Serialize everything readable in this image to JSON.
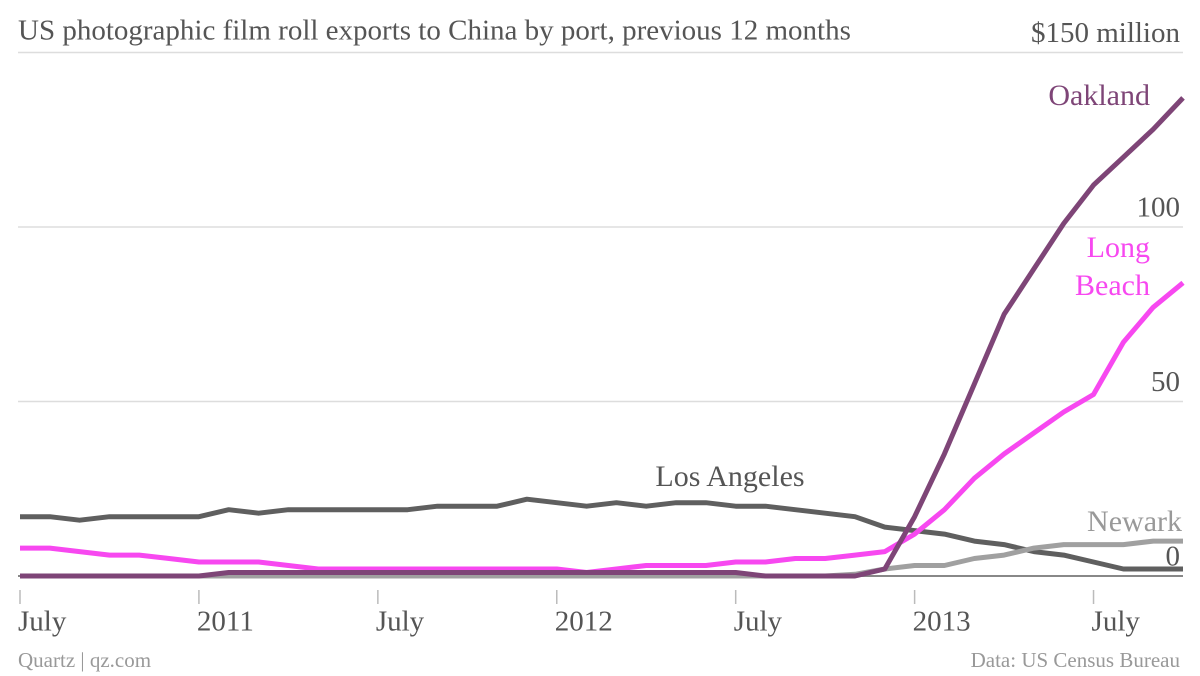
{
  "chart_data": {
    "type": "line",
    "title": "US photographic film roll exports to China by port, previous 12 months",
    "source": "Data: US Census Bureau",
    "credit": "Quartz | qz.com",
    "x": [
      "2010-07",
      "2010-08",
      "2010-09",
      "2010-10",
      "2010-11",
      "2010-12",
      "2011-01",
      "2011-02",
      "2011-03",
      "2011-04",
      "2011-05",
      "2011-06",
      "2011-07",
      "2011-08",
      "2011-09",
      "2011-10",
      "2011-11",
      "2011-12",
      "2012-01",
      "2012-02",
      "2012-03",
      "2012-04",
      "2012-05",
      "2012-06",
      "2012-07",
      "2012-08",
      "2012-09",
      "2012-10",
      "2012-11",
      "2012-12",
      "2013-01",
      "2013-02",
      "2013-03",
      "2013-04",
      "2013-05",
      "2013-06",
      "2013-07",
      "2013-08",
      "2013-09",
      "2013-10"
    ],
    "xticks": [
      {
        "value": "2010-07",
        "label": "July"
      },
      {
        "value": "2011-01",
        "label": "2011"
      },
      {
        "value": "2011-07",
        "label": "July"
      },
      {
        "value": "2012-01",
        "label": "2012"
      },
      {
        "value": "2012-07",
        "label": "July"
      },
      {
        "value": "2013-01",
        "label": "2013"
      },
      {
        "value": "2013-07",
        "label": "July"
      }
    ],
    "ylim": [
      0,
      150
    ],
    "yticks": [
      0,
      50,
      100,
      {
        "value": 150,
        "label": "$150 million"
      }
    ],
    "grid": true,
    "series": [
      {
        "name": "Los Angeles",
        "color": "#5f5f5f",
        "label_color": "#555555",
        "values": [
          17,
          17,
          16,
          17,
          17,
          17,
          17,
          19,
          18,
          19,
          19,
          19,
          19,
          19,
          20,
          20,
          20,
          22,
          21,
          20,
          21,
          20,
          21,
          21,
          20,
          20,
          19,
          18,
          17,
          14,
          13,
          12,
          10,
          9,
          7,
          6,
          4,
          2,
          2,
          2
        ]
      },
      {
        "name": "Newark",
        "color": "#a0a0a0",
        "label_color": "#999999",
        "values": [
          0,
          0,
          0,
          0,
          0,
          0,
          0,
          0,
          0,
          0,
          0,
          0,
          0,
          0,
          0,
          0,
          0,
          0,
          0,
          0,
          0,
          0,
          0,
          0,
          0,
          0,
          0,
          0,
          0.5,
          2,
          3,
          3,
          5,
          6,
          8,
          9,
          9,
          9,
          10,
          10
        ]
      },
      {
        "name": "Long Beach",
        "color": "#f748f0",
        "label_color": "#f748f0",
        "values": [
          8,
          8,
          7,
          6,
          6,
          5,
          4,
          4,
          4,
          3,
          2,
          2,
          2,
          2,
          2,
          2,
          2,
          2,
          2,
          1,
          2,
          3,
          3,
          3,
          4,
          4,
          5,
          5,
          6,
          7,
          12,
          19,
          28,
          35,
          41,
          47,
          52,
          67,
          77,
          84
        ]
      },
      {
        "name": "Oakland",
        "color": "#7e4577",
        "label_color": "#7e4577",
        "values": [
          0,
          0,
          0,
          0,
          0,
          0,
          0,
          1,
          1,
          1,
          1,
          1,
          1,
          1,
          1,
          1,
          1,
          1,
          1,
          1,
          1,
          1,
          1,
          1,
          1,
          0,
          0,
          0,
          0,
          2,
          17,
          35,
          55,
          75,
          88,
          101,
          112,
          120,
          128,
          137
        ]
      }
    ]
  }
}
